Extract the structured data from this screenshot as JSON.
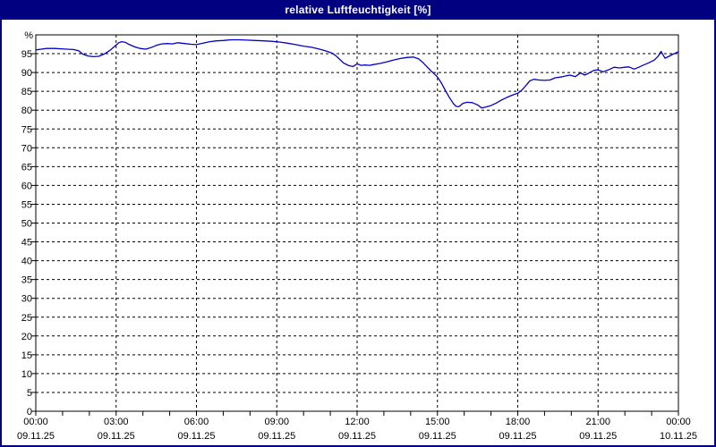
{
  "window": {
    "title": "relative Luftfeuchtigkeit [%]"
  },
  "colors": {
    "frame": "#000080",
    "titlebar_bg": "#000080",
    "titlebar_text": "#ffffff",
    "plot_bg": "#ffffff",
    "plot_border": "#000000",
    "grid": "#000000",
    "tick": "#000000",
    "label": "#000000",
    "line": "#0000c8"
  },
  "chart_data": {
    "type": "line",
    "title": "relative Luftfeuchtigkeit [%]",
    "unit_label": "%",
    "xlabel": "",
    "ylabel": "",
    "ylim": [
      0,
      100
    ],
    "y_tick_step": 5,
    "y_tick_labels": [
      "0",
      "5",
      "10",
      "15",
      "20",
      "25",
      "30",
      "35",
      "40",
      "45",
      "50",
      "55",
      "60",
      "65",
      "70",
      "75",
      "80",
      "85",
      "90",
      "95"
    ],
    "xlim_hours": [
      0,
      24
    ],
    "x_major_tick_hours": 3,
    "x_minor_tick_hours": 1,
    "grid": "dashed",
    "legend": "none",
    "x_tick_labels": [
      {
        "time": "00:00",
        "date": "09.11.25"
      },
      {
        "time": "03:00",
        "date": "09.11.25"
      },
      {
        "time": "06:00",
        "date": "09.11.25"
      },
      {
        "time": "09:00",
        "date": "09.11.25"
      },
      {
        "time": "12:00",
        "date": "09.11.25"
      },
      {
        "time": "15:00",
        "date": "09.11.25"
      },
      {
        "time": "18:00",
        "date": "09.11.25"
      },
      {
        "time": "21:00",
        "date": "09.11.25"
      },
      {
        "time": "00:00",
        "date": "10.11.25"
      }
    ],
    "series": [
      {
        "name": "relative Luftfeuchtigkeit",
        "unit": "%",
        "points": [
          [
            0.0,
            96.0
          ],
          [
            0.2,
            96.2
          ],
          [
            0.4,
            96.4
          ],
          [
            0.7,
            96.4
          ],
          [
            0.95,
            96.3
          ],
          [
            1.15,
            96.2
          ],
          [
            1.4,
            96.1
          ],
          [
            1.6,
            95.8
          ],
          [
            1.75,
            94.9
          ],
          [
            1.95,
            94.4
          ],
          [
            2.15,
            94.2
          ],
          [
            2.35,
            94.3
          ],
          [
            2.55,
            94.9
          ],
          [
            2.75,
            95.8
          ],
          [
            2.95,
            97.0
          ],
          [
            3.1,
            97.9
          ],
          [
            3.2,
            98.2
          ],
          [
            3.35,
            98.0
          ],
          [
            3.5,
            97.4
          ],
          [
            3.7,
            96.8
          ],
          [
            3.9,
            96.4
          ],
          [
            4.1,
            96.2
          ],
          [
            4.3,
            96.6
          ],
          [
            4.5,
            97.2
          ],
          [
            4.7,
            97.6
          ],
          [
            4.9,
            97.7
          ],
          [
            5.1,
            97.6
          ],
          [
            5.3,
            97.9
          ],
          [
            5.55,
            97.7
          ],
          [
            5.8,
            97.5
          ],
          [
            6.0,
            97.4
          ],
          [
            6.25,
            97.8
          ],
          [
            6.5,
            98.2
          ],
          [
            6.75,
            98.4
          ],
          [
            7.0,
            98.5
          ],
          [
            7.3,
            98.7
          ],
          [
            7.6,
            98.7
          ],
          [
            7.9,
            98.6
          ],
          [
            8.2,
            98.5
          ],
          [
            8.5,
            98.4
          ],
          [
            8.8,
            98.3
          ],
          [
            9.1,
            98.1
          ],
          [
            9.4,
            97.8
          ],
          [
            9.7,
            97.4
          ],
          [
            10.0,
            97.0
          ],
          [
            10.3,
            96.7
          ],
          [
            10.6,
            96.2
          ],
          [
            10.85,
            95.7
          ],
          [
            11.05,
            95.2
          ],
          [
            11.2,
            94.5
          ],
          [
            11.35,
            93.5
          ],
          [
            11.5,
            92.5
          ],
          [
            11.7,
            91.8
          ],
          [
            11.85,
            91.6
          ],
          [
            12.0,
            92.3
          ],
          [
            12.15,
            91.9
          ],
          [
            12.3,
            92.0
          ],
          [
            12.45,
            91.9
          ],
          [
            12.6,
            92.1
          ],
          [
            12.85,
            92.4
          ],
          [
            13.1,
            92.8
          ],
          [
            13.35,
            93.3
          ],
          [
            13.6,
            93.7
          ],
          [
            13.85,
            94.0
          ],
          [
            14.1,
            94.1
          ],
          [
            14.3,
            93.6
          ],
          [
            14.45,
            92.7
          ],
          [
            14.6,
            91.6
          ],
          [
            14.75,
            90.5
          ],
          [
            14.9,
            89.5
          ],
          [
            15.0,
            88.8
          ],
          [
            15.15,
            87.2
          ],
          [
            15.3,
            85.2
          ],
          [
            15.45,
            83.3
          ],
          [
            15.6,
            81.7
          ],
          [
            15.7,
            81.0
          ],
          [
            15.8,
            80.9
          ],
          [
            15.95,
            81.8
          ],
          [
            16.1,
            82.1
          ],
          [
            16.3,
            82.0
          ],
          [
            16.5,
            81.4
          ],
          [
            16.65,
            80.6
          ],
          [
            16.8,
            80.8
          ],
          [
            17.0,
            81.2
          ],
          [
            17.2,
            81.9
          ],
          [
            17.4,
            82.7
          ],
          [
            17.6,
            83.4
          ],
          [
            17.8,
            84.0
          ],
          [
            18.0,
            84.5
          ],
          [
            18.15,
            85.3
          ],
          [
            18.3,
            86.5
          ],
          [
            18.45,
            87.8
          ],
          [
            18.6,
            88.2
          ],
          [
            18.8,
            88.0
          ],
          [
            19.0,
            87.9
          ],
          [
            19.2,
            88.0
          ],
          [
            19.4,
            88.6
          ],
          [
            19.6,
            88.8
          ],
          [
            19.8,
            89.1
          ],
          [
            19.95,
            89.3
          ],
          [
            20.15,
            88.9
          ],
          [
            20.35,
            89.9
          ],
          [
            20.5,
            89.3
          ],
          [
            20.7,
            90.0
          ],
          [
            20.85,
            90.6
          ],
          [
            21.0,
            90.7
          ],
          [
            21.2,
            90.2
          ],
          [
            21.45,
            90.9
          ],
          [
            21.6,
            91.4
          ],
          [
            21.8,
            91.2
          ],
          [
            22.0,
            91.4
          ],
          [
            22.15,
            91.5
          ],
          [
            22.35,
            90.9
          ],
          [
            22.55,
            91.5
          ],
          [
            22.7,
            92.0
          ],
          [
            22.9,
            92.6
          ],
          [
            23.1,
            93.3
          ],
          [
            23.25,
            94.4
          ],
          [
            23.35,
            95.6
          ],
          [
            23.5,
            93.8
          ],
          [
            23.65,
            94.3
          ],
          [
            23.8,
            94.9
          ],
          [
            23.9,
            95.2
          ],
          [
            24.0,
            95.5
          ]
        ]
      }
    ]
  }
}
